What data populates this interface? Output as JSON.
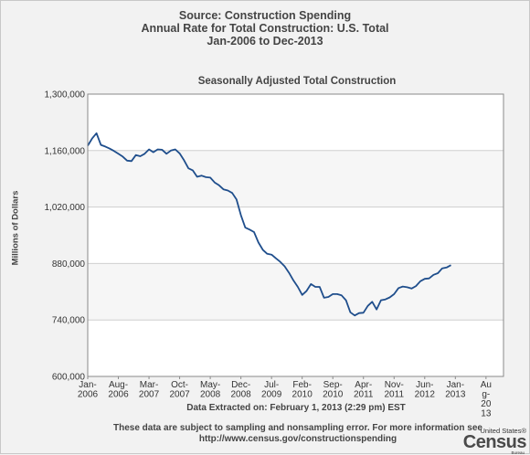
{
  "header": {
    "line1": "Source: Construction Spending",
    "line2": "Annual Rate for Total Construction: U.S. Total",
    "line3": "Jan-2006 to Dec-2013"
  },
  "footer": {
    "extracted": "Data Extracted on: February 1, 2013 (2:29 pm) EST",
    "note_line1": "These data are subject to sampling and nonsampling error. For more information see",
    "note_line2": "http://www.census.gov/constructionspending"
  },
  "logo": {
    "top": "United States®",
    "main": "Census",
    "bottom": "Bureau"
  },
  "chart_data": {
    "type": "line",
    "title": "Seasonally Adjusted Total Construction",
    "ylabel": "Millions of Dollars",
    "xlabel": "",
    "ylim": [
      600000,
      1300000
    ],
    "y_ticks": [
      "1,300,000",
      "1,160,000",
      "1,020,000",
      "880,000",
      "740,000",
      "600,000"
    ],
    "y_tick_values": [
      1300000,
      1160000,
      1020000,
      880000,
      740000,
      600000
    ],
    "x_ticks": [
      {
        "month_index": 0,
        "label": [
          "Jan-",
          "2006"
        ]
      },
      {
        "month_index": 7,
        "label": [
          "Aug-",
          "2006"
        ]
      },
      {
        "month_index": 14,
        "label": [
          "Mar-",
          "2007"
        ]
      },
      {
        "month_index": 21,
        "label": [
          "Oct-",
          "2007"
        ]
      },
      {
        "month_index": 28,
        "label": [
          "May-",
          "2008"
        ]
      },
      {
        "month_index": 35,
        "label": [
          "Dec-",
          "2008"
        ]
      },
      {
        "month_index": 42,
        "label": [
          "Jul-",
          "2009"
        ]
      },
      {
        "month_index": 49,
        "label": [
          "Feb-",
          "2010"
        ]
      },
      {
        "month_index": 56,
        "label": [
          "Sep-",
          "2010"
        ]
      },
      {
        "month_index": 63,
        "label": [
          "Apr-",
          "2011"
        ]
      },
      {
        "month_index": 70,
        "label": [
          "Nov-",
          "2011"
        ]
      },
      {
        "month_index": 77,
        "label": [
          "Jun-",
          "2012"
        ]
      },
      {
        "month_index": 84,
        "label": [
          "Jan-",
          "2013"
        ]
      },
      {
        "month_index": 91,
        "label": [
          "Au",
          "g-",
          "20",
          "13"
        ]
      }
    ],
    "x_range_months": [
      0,
      95
    ],
    "grid": true,
    "series": [
      {
        "color": "#1f4e8c",
        "values": [
          1172000,
          1190000,
          1203000,
          1174000,
          1170000,
          1165000,
          1159000,
          1152000,
          1145000,
          1135000,
          1134000,
          1149000,
          1146000,
          1152000,
          1163000,
          1156000,
          1163000,
          1162000,
          1152000,
          1160000,
          1163000,
          1153000,
          1136000,
          1116000,
          1111000,
          1095000,
          1098000,
          1094000,
          1093000,
          1081000,
          1074000,
          1064000,
          1061000,
          1055000,
          1039000,
          1000000,
          969000,
          964000,
          958000,
          932000,
          914000,
          904000,
          902000,
          893000,
          884000,
          873000,
          857000,
          838000,
          822000,
          802000,
          812000,
          829000,
          822000,
          822000,
          795000,
          797000,
          804000,
          804000,
          801000,
          789000,
          759000,
          751000,
          757000,
          758000,
          775000,
          785000,
          766000,
          789000,
          791000,
          796000,
          804000,
          819000,
          823000,
          821000,
          818000,
          824000,
          836000,
          842000,
          843000,
          852000,
          856000,
          868000,
          870000,
          876000
        ]
      }
    ]
  }
}
